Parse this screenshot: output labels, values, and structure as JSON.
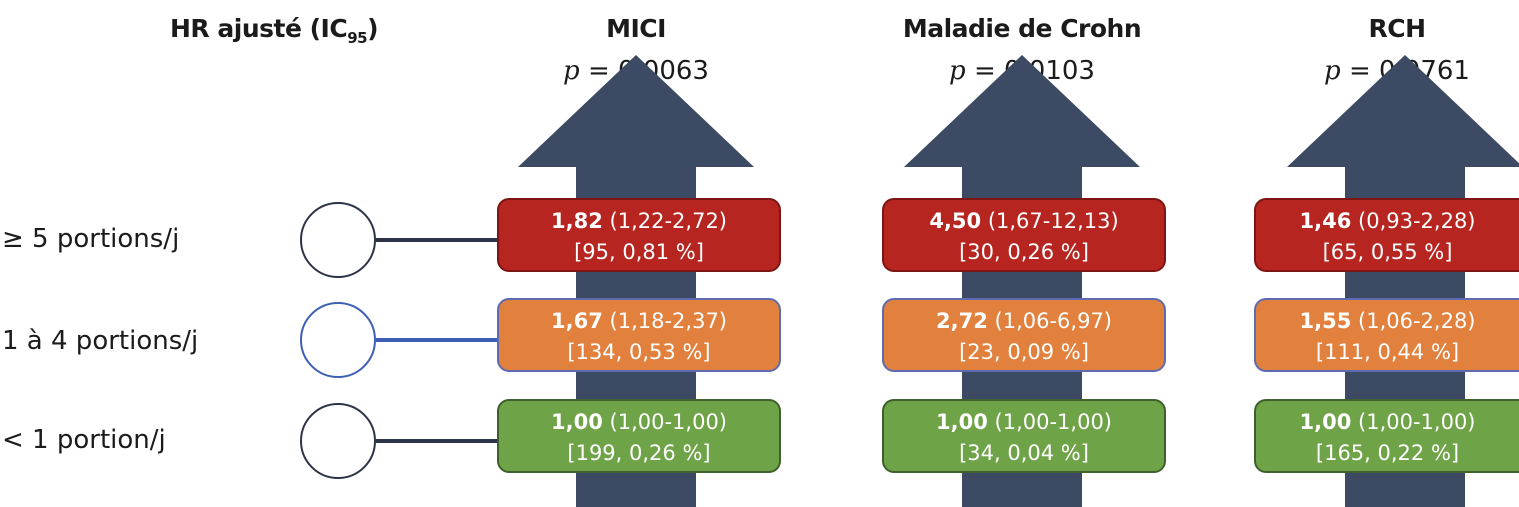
{
  "header": {
    "label": "HR ajusté (IC",
    "sub": "95",
    "close": ")"
  },
  "columns": [
    {
      "title": "MICI",
      "p_label": "p",
      "p_value": "= 0,0063"
    },
    {
      "title": "Maladie de Crohn",
      "p_label": "p",
      "p_value": "= 0,0103"
    },
    {
      "title": "RCH",
      "p_label": "p",
      "p_value": "= 0,0761"
    }
  ],
  "rows": [
    {
      "label": "≥ 5 portions/j",
      "color": "#b72520"
    },
    {
      "label": "1 à 4 portions/j",
      "color": "#e2813e"
    },
    {
      "label": "< 1 portion/j",
      "color": "#6fa347"
    }
  ],
  "boxes": [
    [
      {
        "hr": "1,82",
        "ci": "(1,22-2,72)",
        "cases": "[95, 0,81 %]"
      },
      {
        "hr": "1,67",
        "ci": "(1,18-2,37)",
        "cases": "[134, 0,53 %]"
      },
      {
        "hr": "1,00",
        "ci": "(1,00-1,00)",
        "cases": "[199, 0,26 %]"
      }
    ],
    [
      {
        "hr": "4,50",
        "ci": "(1,67-12,13)",
        "cases": "[30, 0,26 %]"
      },
      {
        "hr": "2,72",
        "ci": "(1,06-6,97)",
        "cases": "[23, 0,09 %]"
      },
      {
        "hr": "1,00",
        "ci": "(1,00-1,00)",
        "cases": "[34, 0,04 %]"
      }
    ],
    [
      {
        "hr": "1,46",
        "ci": "(0,93-2,28)",
        "cases": "[65, 0,55 %]"
      },
      {
        "hr": "1,55",
        "ci": "(1,06-2,28)",
        "cases": "[111, 0,44 %]"
      },
      {
        "hr": "1,00",
        "ci": "(1,00-1,00)",
        "cases": "[165, 0,22 %]"
      }
    ]
  ],
  "colors": {
    "arrow": "#3c4a63",
    "connector": "#2e3448",
    "connector_highlight": "#3f5fb5"
  }
}
